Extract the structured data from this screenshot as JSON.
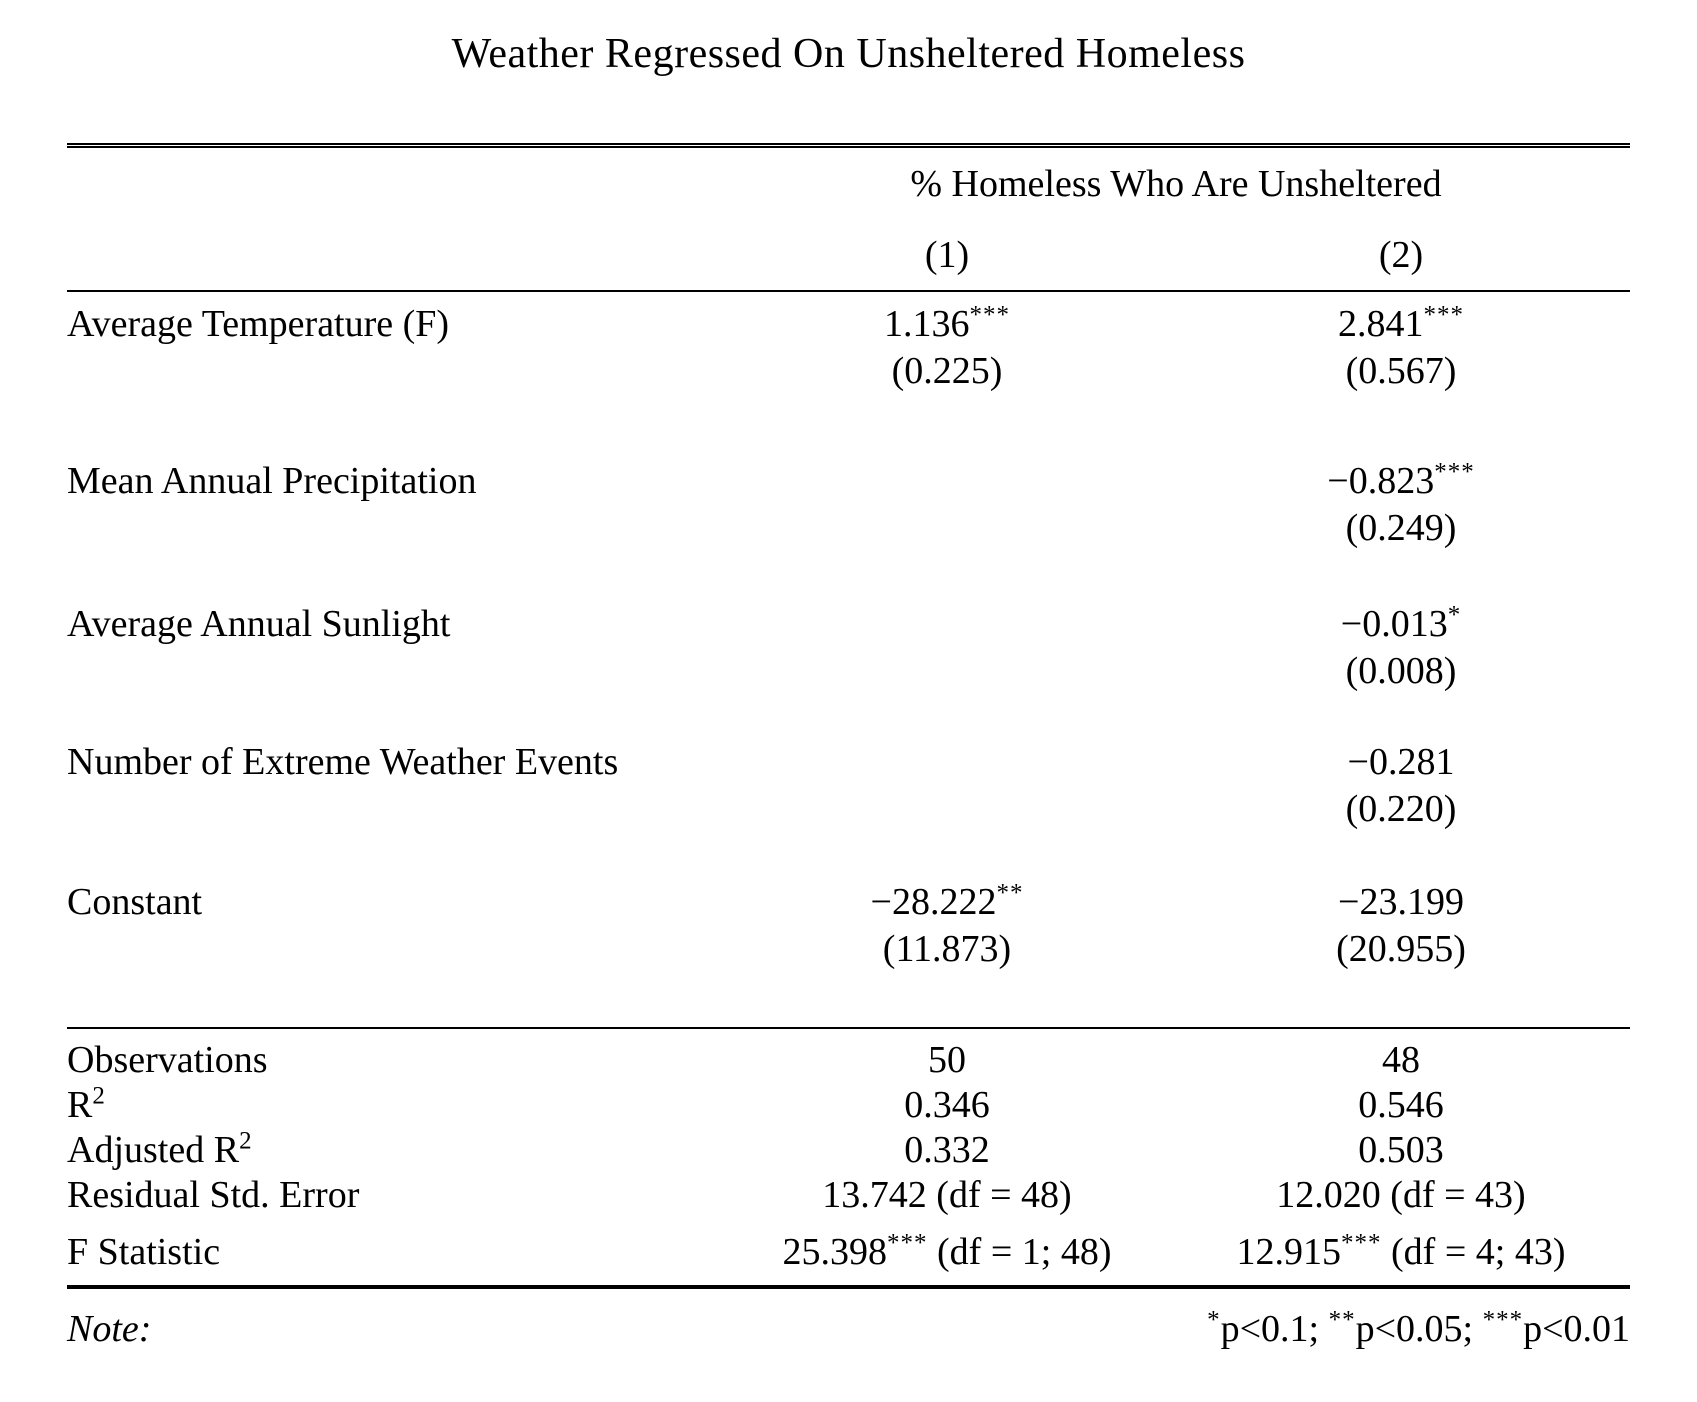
{
  "page": {
    "title": "Weather Regressed On Unsheltered Homeless"
  },
  "table": {
    "dep_var_header": "% Homeless Who Are Unsheltered",
    "columns": {
      "c1": "(1)",
      "c2": "(2)"
    },
    "coef_rows": [
      {
        "label": "Average Temperature (F)",
        "m1_coef": "1.136",
        "m1_stars": "***",
        "m1_se": "(0.225)",
        "m2_coef": "2.841",
        "m2_stars": "***",
        "m2_se": "(0.567)"
      },
      {
        "label": "Mean Annual Precipitation",
        "m1_coef": "",
        "m1_stars": "",
        "m1_se": "",
        "m2_coef": "−0.823",
        "m2_stars": "***",
        "m2_se": "(0.249)"
      },
      {
        "label": "Average Annual Sunlight",
        "m1_coef": "",
        "m1_stars": "",
        "m1_se": "",
        "m2_coef": "−0.013",
        "m2_stars": "*",
        "m2_se": "(0.008)"
      },
      {
        "label": "Number of Extreme Weather Events",
        "m1_coef": "",
        "m1_stars": "",
        "m1_se": "",
        "m2_coef": "−0.281",
        "m2_stars": "",
        "m2_se": "(0.220)"
      },
      {
        "label": "Constant",
        "m1_coef": "−28.222",
        "m1_stars": "**",
        "m1_se": "(11.873)",
        "m2_coef": "−23.199",
        "m2_stars": "",
        "m2_se": "(20.955)"
      }
    ],
    "stats_rows": [
      {
        "label": "Observations",
        "label_sup": "",
        "v1_pre": "50",
        "v1_stars": "",
        "v1_post": "",
        "v2_pre": "48",
        "v2_stars": "",
        "v2_post": ""
      },
      {
        "label": "R",
        "label_sup": "2",
        "v1_pre": "0.346",
        "v1_stars": "",
        "v1_post": "",
        "v2_pre": "0.546",
        "v2_stars": "",
        "v2_post": ""
      },
      {
        "label": "Adjusted R",
        "label_sup": "2",
        "v1_pre": "0.332",
        "v1_stars": "",
        "v1_post": "",
        "v2_pre": "0.503",
        "v2_stars": "",
        "v2_post": ""
      },
      {
        "label": "Residual Std. Error",
        "label_sup": "",
        "v1_pre": "13.742 (df = 48)",
        "v1_stars": "",
        "v1_post": "",
        "v2_pre": "12.020 (df = 43)",
        "v2_stars": "",
        "v2_post": ""
      },
      {
        "label": "F Statistic",
        "label_sup": "",
        "v1_pre": "25.398",
        "v1_stars": "***",
        "v1_post": " (df = 1; 48)",
        "v2_pre": "12.915",
        "v2_stars": "***",
        "v2_post": " (df = 4; 43)"
      }
    ],
    "note": {
      "label": "Note:",
      "segments": [
        {
          "stars": "*",
          "text": "p<0.1; "
        },
        {
          "stars": "**",
          "text": "p<0.05; "
        },
        {
          "stars": "***",
          "text": "p<0.01"
        }
      ]
    }
  }
}
